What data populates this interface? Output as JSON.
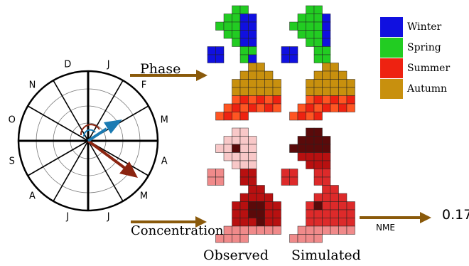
{
  "clock": {
    "months": [
      {
        "label": "J",
        "angle": 15
      },
      {
        "label": "F",
        "angle": 45
      },
      {
        "label": "M",
        "angle": 75
      },
      {
        "label": "A",
        "angle": 105
      },
      {
        "label": "M",
        "angle": 135
      },
      {
        "label": "J",
        "angle": 165
      },
      {
        "label": "J",
        "angle": 195
      },
      {
        "label": "A",
        "angle": 225
      },
      {
        "label": "S",
        "angle": 255
      },
      {
        "label": "O",
        "angle": 285
      },
      {
        "label": "N",
        "angle": 315
      },
      {
        "label": "D",
        "angle": 345
      }
    ],
    "colors": {
      "observed": "#8b2410",
      "simulated": "#1b7bb3"
    }
  },
  "labels": {
    "phase": "Phase",
    "concentration": "Concentration",
    "observed": "Observed",
    "simulated": "Simulated",
    "nme": "NME",
    "nme_value": "0.17"
  },
  "legend": [
    {
      "label": "Winter",
      "color": "#1010e0"
    },
    {
      "label": "Spring",
      "color": "#22cc22"
    },
    {
      "label": "Summer",
      "color": "#ee2211"
    },
    {
      "label": "Autumn",
      "color": "#c8900e"
    }
  ],
  "arrow_color": "#8a5a0b"
}
